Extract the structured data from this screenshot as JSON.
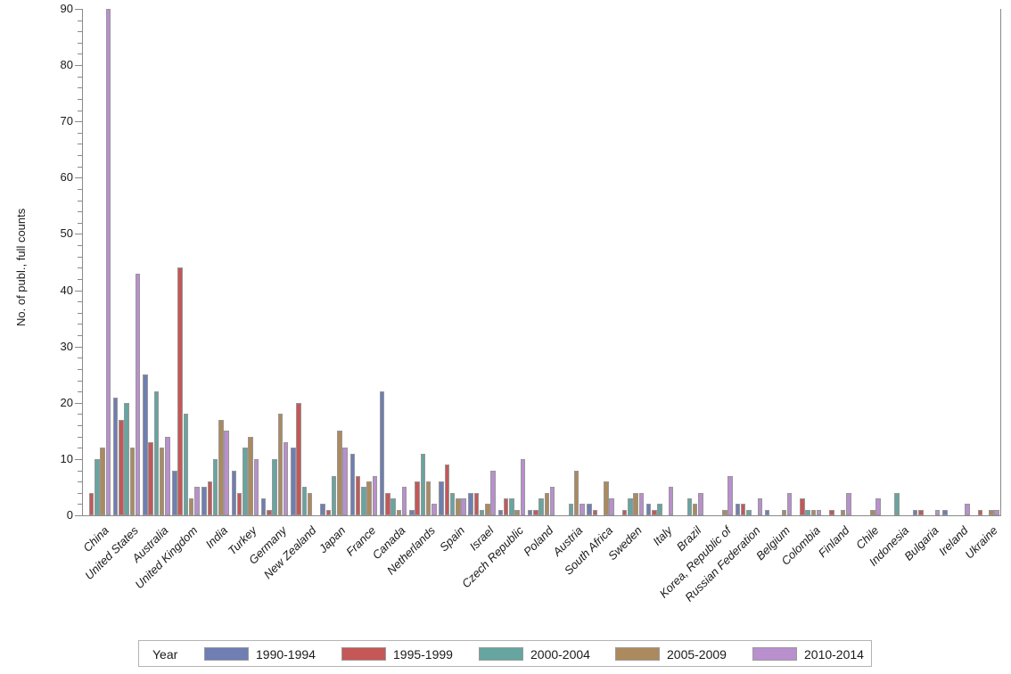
{
  "chart_data": {
    "type": "bar",
    "title": "",
    "xlabel": "",
    "ylabel": "No. of publ., full counts",
    "ylim": [
      0,
      90
    ],
    "yticks": [
      0,
      10,
      20,
      30,
      40,
      50,
      60,
      70,
      80,
      90
    ],
    "minor_tick_step": 2,
    "grid": false,
    "legend_position": "bottom",
    "legend_title": "Year",
    "categories": [
      "China",
      "United States",
      "Australia",
      "United Kingdom",
      "India",
      "Turkey",
      "Germany",
      "New Zealand",
      "Japan",
      "France",
      "Canada",
      "Netherlands",
      "Spain",
      "Israel",
      "Czech Republic",
      "Poland",
      "Austria",
      "South Africa",
      "Sweden",
      "Italy",
      "Brazil",
      "Korea, Republic of",
      "Russian Federation",
      "Belgium",
      "Colombia",
      "Finland",
      "Chile",
      "Indonesia",
      "Bulgaria",
      "Ireland",
      "Ukraine"
    ],
    "series": [
      {
        "name": "1990-1994",
        "color": "#6F7EB3",
        "values": [
          0,
          21,
          25,
          8,
          5,
          8,
          3,
          12,
          2,
          11,
          22,
          1,
          6,
          4,
          1,
          1,
          0,
          2,
          0,
          2,
          0,
          0,
          2,
          1,
          0,
          0,
          0,
          0,
          1,
          1,
          0
        ]
      },
      {
        "name": "1995-1999",
        "color": "#C55757",
        "values": [
          4,
          17,
          13,
          44,
          6,
          4,
          1,
          20,
          1,
          7,
          4,
          6,
          9,
          4,
          3,
          1,
          0,
          1,
          1,
          1,
          0,
          0,
          2,
          0,
          3,
          1,
          0,
          0,
          1,
          0,
          1
        ]
      },
      {
        "name": "2000-2004",
        "color": "#66A5A0",
        "values": [
          10,
          20,
          22,
          18,
          10,
          12,
          10,
          5,
          7,
          5,
          3,
          11,
          4,
          1,
          3,
          3,
          2,
          0,
          3,
          2,
          3,
          0,
          1,
          0,
          1,
          0,
          0,
          4,
          0,
          0,
          0
        ]
      },
      {
        "name": "2005-2009",
        "color": "#AC8A5E",
        "values": [
          12,
          12,
          12,
          3,
          17,
          14,
          18,
          4,
          15,
          6,
          1,
          6,
          3,
          2,
          1,
          4,
          8,
          6,
          4,
          0,
          2,
          1,
          0,
          1,
          1,
          1,
          1,
          0,
          0,
          0,
          1
        ]
      },
      {
        "name": "2010-2014",
        "color": "#B98FCE",
        "values": [
          90,
          43,
          14,
          5,
          15,
          10,
          13,
          0,
          12,
          7,
          5,
          2,
          3,
          8,
          10,
          5,
          2,
          3,
          4,
          5,
          4,
          7,
          3,
          4,
          1,
          4,
          3,
          0,
          1,
          2,
          1
        ]
      }
    ]
  }
}
